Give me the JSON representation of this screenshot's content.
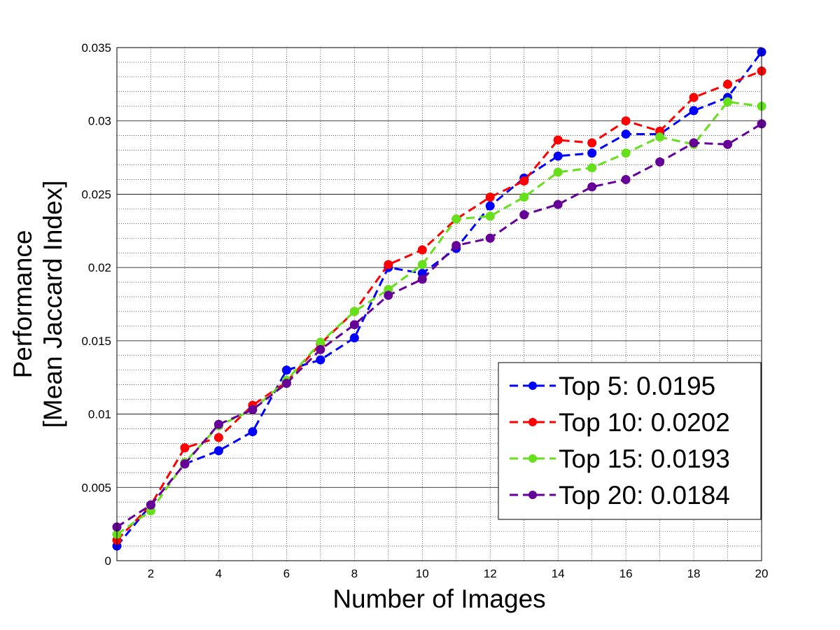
{
  "chart_data": {
    "type": "line",
    "title": "",
    "xlabel": "Number of Images",
    "ylabel": "Performance",
    "ylabel_line2": "[Mean Jaccard Index]",
    "xlim": [
      1,
      20
    ],
    "ylim": [
      0,
      0.035
    ],
    "xticks": [
      2,
      4,
      6,
      8,
      10,
      12,
      14,
      16,
      18,
      20
    ],
    "yticks": [
      0,
      0.005,
      0.01,
      0.015,
      0.02,
      0.025,
      0.03,
      0.035
    ],
    "xtick_labels": [
      "2",
      "4",
      "6",
      "8",
      "10",
      "12",
      "14",
      "16",
      "18",
      "20"
    ],
    "ytick_labels": [
      "0",
      "0.005",
      "0.01",
      "0.015",
      "0.02",
      "0.025",
      "0.03",
      "0.035"
    ],
    "grid": "on (major solid, minor dotted)",
    "legend_position": "bottom-right",
    "x": [
      1,
      2,
      3,
      4,
      5,
      6,
      7,
      8,
      9,
      10,
      11,
      12,
      13,
      14,
      15,
      16,
      17,
      18,
      19,
      20
    ],
    "series": [
      {
        "name": "Top 5: 0.0195",
        "color": "#0000ff",
        "values": [
          0.001,
          0.0038,
          0.0066,
          0.0075,
          0.0088,
          0.013,
          0.0137,
          0.0152,
          0.02,
          0.0196,
          0.0213,
          0.0242,
          0.0261,
          0.0276,
          0.0278,
          0.0291,
          0.0291,
          0.0307,
          0.0316,
          0.0347
        ]
      },
      {
        "name": "Top 10: 0.0202",
        "color": "#ff0000",
        "values": [
          0.0014,
          0.0038,
          0.0077,
          0.0084,
          0.0106,
          0.0122,
          0.0148,
          0.017,
          0.0202,
          0.0212,
          0.0233,
          0.0248,
          0.0259,
          0.0287,
          0.0285,
          0.03,
          0.0293,
          0.0316,
          0.0325,
          0.0334
        ]
      },
      {
        "name": "Top 15: 0.0193",
        "color": "#66e01a",
        "values": [
          0.0018,
          0.0034,
          0.0067,
          0.0092,
          0.0103,
          0.0123,
          0.0149,
          0.017,
          0.0185,
          0.0202,
          0.0233,
          0.0235,
          0.0248,
          0.0265,
          0.0268,
          0.0278,
          0.0289,
          0.0284,
          0.0313,
          0.031
        ]
      },
      {
        "name": "Top 20: 0.0184",
        "color": "#660099",
        "values": [
          0.0023,
          0.0038,
          0.0066,
          0.0093,
          0.0103,
          0.0121,
          0.0144,
          0.0161,
          0.0181,
          0.0192,
          0.0215,
          0.022,
          0.0236,
          0.0243,
          0.0255,
          0.026,
          0.0272,
          0.0285,
          0.0284,
          0.0298
        ]
      }
    ]
  }
}
